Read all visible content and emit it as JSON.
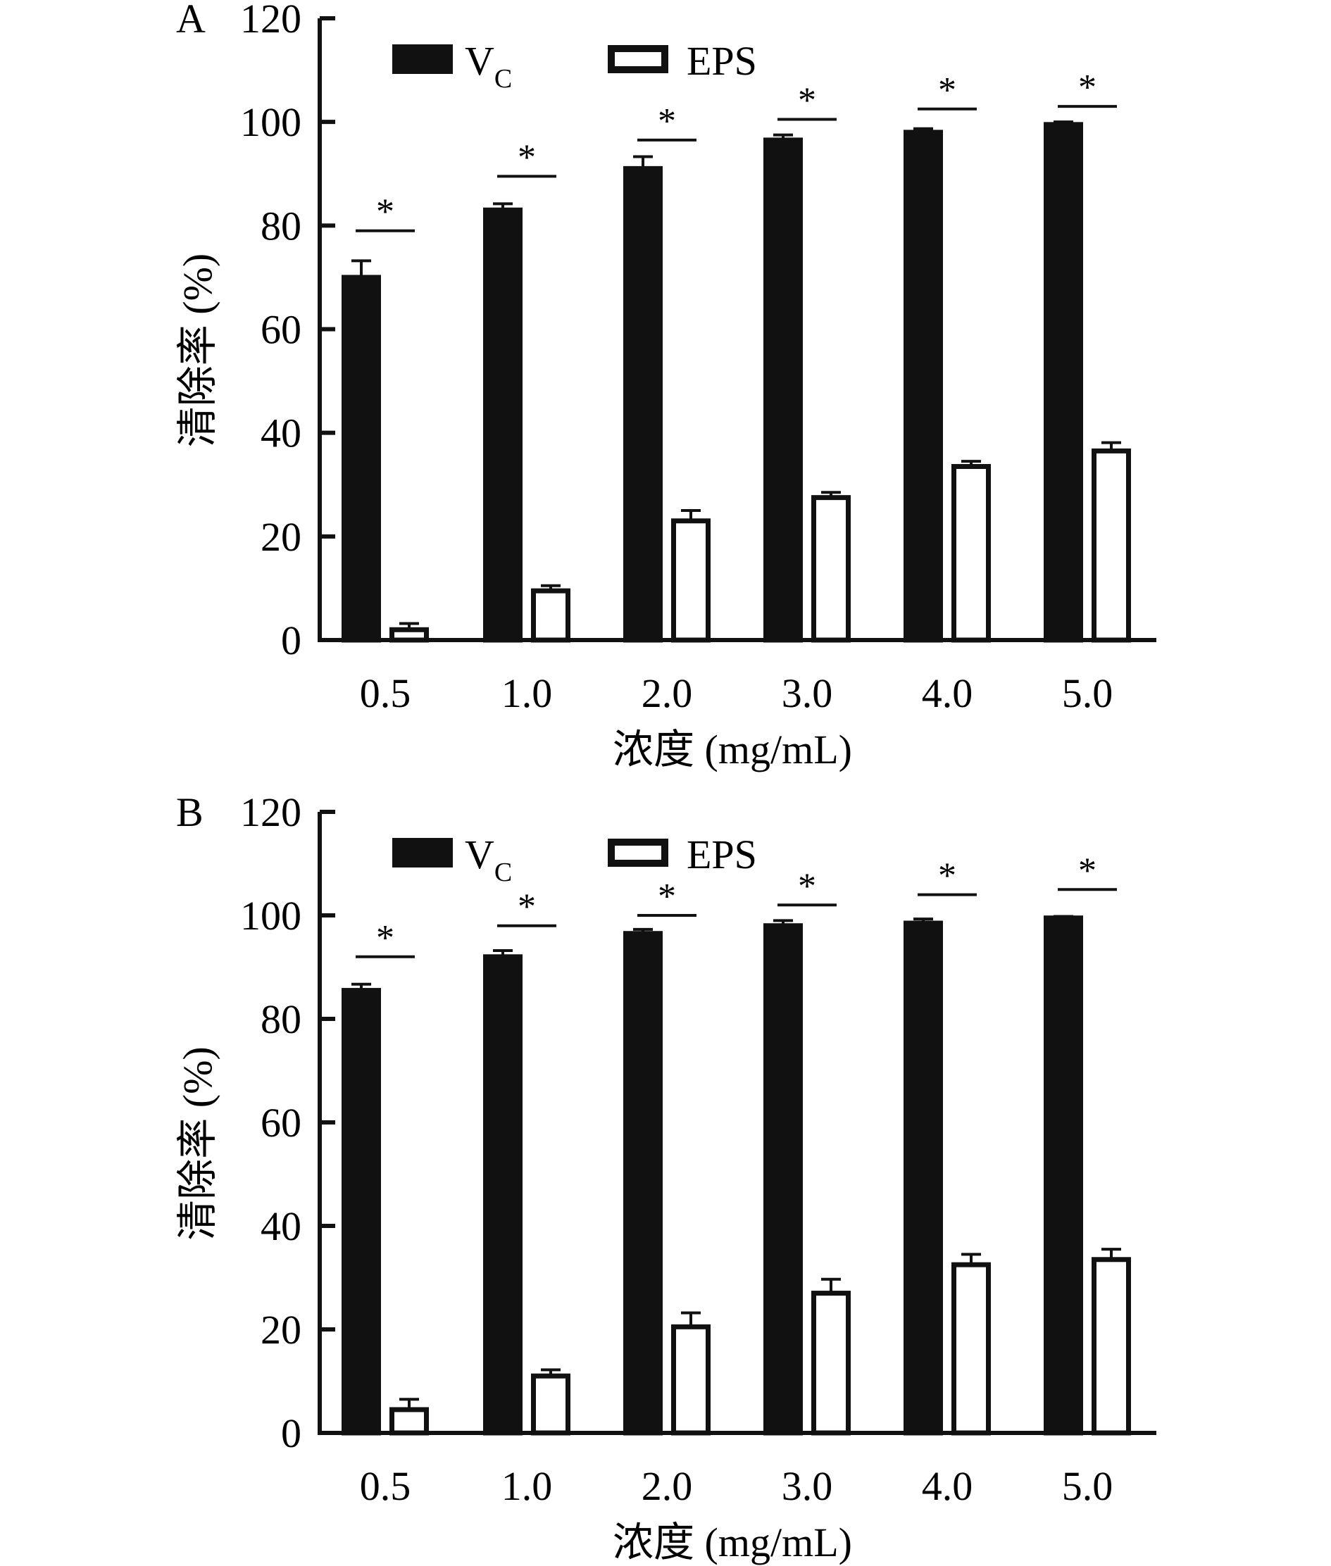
{
  "chart_data": [
    {
      "panel_label": "A",
      "type": "bar",
      "categories": [
        "0.5",
        "1.0",
        "2.0",
        "3.0",
        "4.0",
        "5.0"
      ],
      "xlabel": "浓度 (mg/mL)",
      "ylabel": "清除率 (%)",
      "ylim": [
        0,
        120
      ],
      "yticks": [
        "0",
        "20",
        "40",
        "60",
        "80",
        "100",
        "120"
      ],
      "legend_placement": "top-left",
      "series": [
        {
          "name": "VC",
          "name_main": "V",
          "name_sub": "C",
          "fill": "#111111",
          "values": [
            70,
            83,
            91,
            96.5,
            98,
            99.5
          ],
          "errors": [
            3.2,
            1.2,
            2.3,
            1.0,
            0.7,
            0.5
          ]
        },
        {
          "name": "EPS",
          "fill": "#ffffff",
          "values": [
            2,
            9.5,
            23,
            27.5,
            33.5,
            36.5
          ],
          "errors": [
            1.2,
            1.0,
            2.0,
            1.0,
            1.0,
            1.6
          ]
        }
      ],
      "significance": {
        "marker": "*",
        "heights": [
          79,
          89.5,
          96.5,
          100.5,
          102.5,
          103
        ]
      }
    },
    {
      "panel_label": "B",
      "type": "bar",
      "categories": [
        "0.5",
        "1.0",
        "2.0",
        "3.0",
        "4.0",
        "5.0"
      ],
      "xlabel": "浓度 (mg/mL)",
      "ylabel": "清除率 (%)",
      "ylim": [
        0,
        120
      ],
      "yticks": [
        "0",
        "20",
        "40",
        "60",
        "80",
        "100",
        "120"
      ],
      "legend_placement": "top-left",
      "series": [
        {
          "name": "VC",
          "name_main": "V",
          "name_sub": "C",
          "fill": "#111111",
          "values": [
            85.5,
            92,
            96.5,
            98,
            98.5,
            99.5
          ],
          "errors": [
            1.2,
            1.2,
            0.8,
            1.0,
            0.8,
            0.3
          ]
        },
        {
          "name": "EPS",
          "fill": "#ffffff",
          "values": [
            4.5,
            11,
            20.5,
            27,
            32.5,
            33.5
          ],
          "errors": [
            2.0,
            1.2,
            2.7,
            2.7,
            2.0,
            2.0
          ]
        }
      ],
      "significance": {
        "marker": "*",
        "heights": [
          92,
          98,
          100,
          102,
          104,
          105
        ]
      }
    }
  ]
}
